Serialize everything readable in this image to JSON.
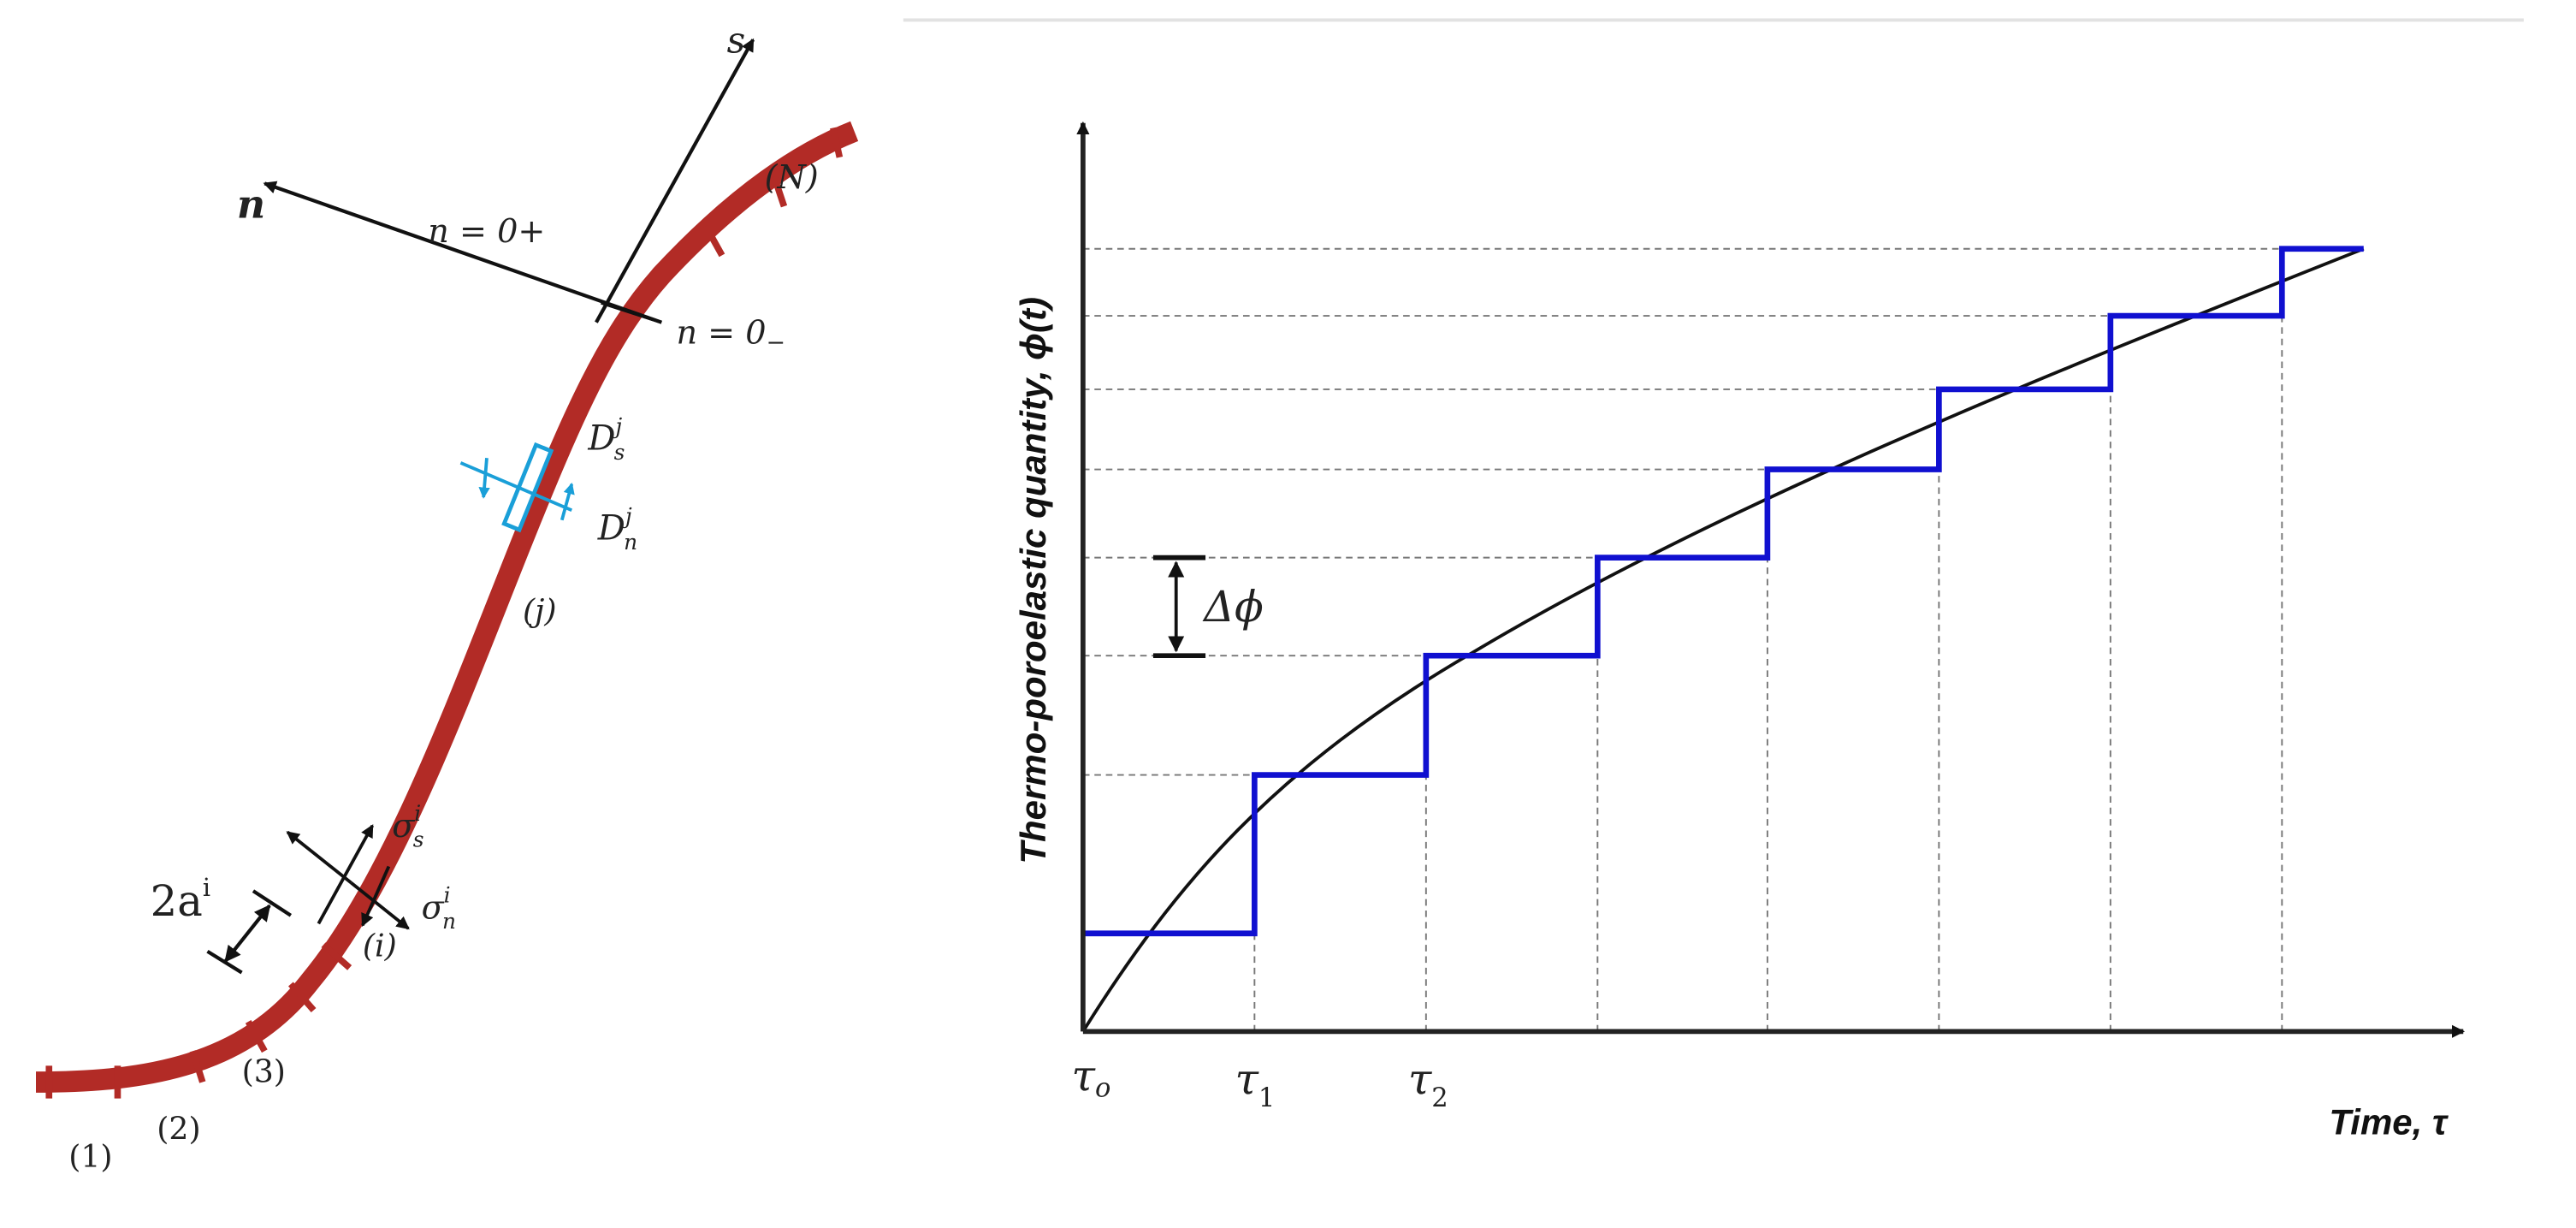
{
  "left_diagram": {
    "labels": {
      "s_axis": "s",
      "n_axis": "n",
      "n_plus": "n = 0+",
      "n_minus": "n = 0",
      "n_minus_sub": "−",
      "element_N": "(N)",
      "element_j": "(j)",
      "element_i": "(i)",
      "element_1": "(1)",
      "element_2": "(2)",
      "element_3": "(3)",
      "Ds": "D",
      "Ds_sup": "j",
      "Ds_sub": "s",
      "Dn": "D",
      "Dn_sup": "j",
      "Dn_sub": "n",
      "sigma_s": "σ",
      "sigma_s_sup": "i",
      "sigma_s_sub": "s",
      "sigma_n": "σ",
      "sigma_n_sup": "i",
      "sigma_n_sub": "n",
      "half_length": "2a",
      "half_length_sup": "i"
    },
    "colors": {
      "fracture": "#b22b26",
      "displacement": "#1a9fd8",
      "arrows": "#111111"
    }
  },
  "right_diagram": {
    "ylabel": "Thermo-poroelastic quantity, ϕ(t)",
    "xlabel": "Time, τ",
    "tick_labels": [
      {
        "base": "τ",
        "sub": "o"
      },
      {
        "base": "τ",
        "sub": "1"
      },
      {
        "base": "τ",
        "sub": "2"
      }
    ],
    "delta_label": "Δϕ",
    "step_count": 7,
    "colors": {
      "steps": "#1010d0",
      "curve": "#111111",
      "guides": "#777777"
    }
  }
}
